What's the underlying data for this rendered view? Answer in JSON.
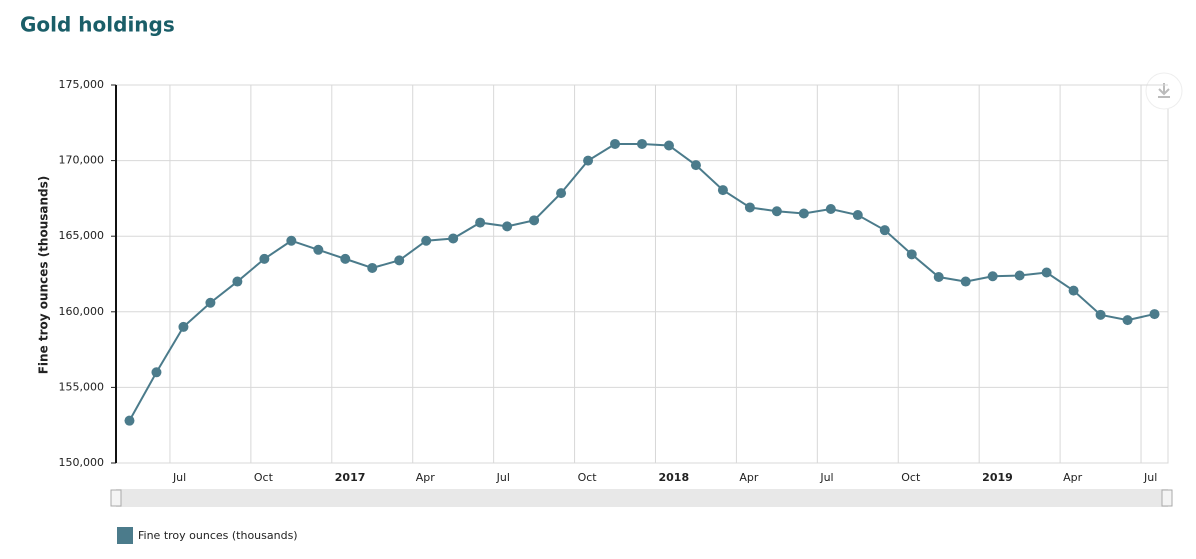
{
  "chart_data": {
    "type": "line",
    "title": "Gold holdings",
    "y_label": "Fine troy ounces (thousands)",
    "x": [
      "2016-05",
      "2016-06",
      "2016-07",
      "2016-08",
      "2016-09",
      "2016-10",
      "2016-11",
      "2016-12",
      "2017-01",
      "2017-02",
      "2017-03",
      "2017-04",
      "2017-05",
      "2017-06",
      "2017-07",
      "2017-08",
      "2017-09",
      "2017-10",
      "2017-11",
      "2017-12",
      "2018-01",
      "2018-02",
      "2018-03",
      "2018-04",
      "2018-05",
      "2018-06",
      "2018-07",
      "2018-08",
      "2018-09",
      "2018-10",
      "2018-11",
      "2018-12",
      "2019-01",
      "2019-02",
      "2019-03",
      "2019-04",
      "2019-05",
      "2019-06",
      "2019-07"
    ],
    "series": [
      {
        "name": "Fine troy ounces (thousands)",
        "color": "#4b7b8b",
        "values": [
          152800,
          156000,
          159000,
          160600,
          162000,
          163500,
          164700,
          164100,
          163500,
          162900,
          163400,
          164700,
          164850,
          165900,
          165650,
          166050,
          167850,
          170000,
          171100,
          171100,
          171000,
          169700,
          168050,
          166900,
          166650,
          166500,
          166800,
          166400,
          165400,
          163800,
          162300,
          162000,
          162350,
          162400,
          162600,
          161400,
          159800,
          159450,
          159850
        ]
      }
    ],
    "xlim": [
      "2016-05",
      "2019-08"
    ],
    "xticks": [
      {
        "value": "2016-07",
        "label": "Jul"
      },
      {
        "value": "2016-10",
        "label": "Oct"
      },
      {
        "value": "2017-01",
        "label": "2017"
      },
      {
        "value": "2017-04",
        "label": "Apr"
      },
      {
        "value": "2017-07",
        "label": "Jul"
      },
      {
        "value": "2017-10",
        "label": "Oct"
      },
      {
        "value": "2018-01",
        "label": "2018"
      },
      {
        "value": "2018-04",
        "label": "Apr"
      },
      {
        "value": "2018-07",
        "label": "Jul"
      },
      {
        "value": "2018-10",
        "label": "Oct"
      },
      {
        "value": "2019-01",
        "label": "2019"
      },
      {
        "value": "2019-04",
        "label": "Apr"
      },
      {
        "value": "2019-07",
        "label": "Jul"
      }
    ],
    "ylim": [
      150000,
      175000
    ],
    "yticks": [
      {
        "value": 150000,
        "label": "150,000"
      },
      {
        "value": 155000,
        "label": "155,000"
      },
      {
        "value": 160000,
        "label": "160,000"
      },
      {
        "value": 165000,
        "label": "165,000"
      },
      {
        "value": 170000,
        "label": "170,000"
      },
      {
        "value": 175000,
        "label": "175,000"
      }
    ],
    "grid": true
  }
}
